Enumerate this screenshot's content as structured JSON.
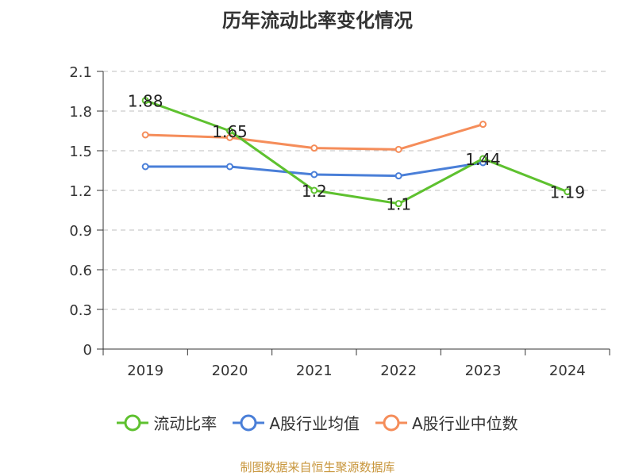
{
  "chart_data": {
    "type": "line",
    "title": "历年流动比率变化情况",
    "categories": [
      "2019",
      "2020",
      "2021",
      "2022",
      "2023",
      "2024"
    ],
    "ylim": [
      0,
      2.1
    ],
    "yticks": [
      "0",
      "0.3",
      "0.6",
      "0.9",
      "1.2",
      "1.5",
      "1.8",
      "2.1"
    ],
    "grid": true,
    "legend_position": "bottom",
    "series": [
      {
        "name": "流动比率",
        "color": "#5ec12f",
        "values": [
          1.88,
          1.65,
          1.2,
          1.1,
          1.44,
          1.19
        ],
        "labels": [
          "1.88",
          "1.65",
          "1.2",
          "1.1",
          "1.44",
          "1.19"
        ]
      },
      {
        "name": "A股行业均值",
        "color": "#4a7fd8",
        "values": [
          1.38,
          1.38,
          1.32,
          1.31,
          1.41,
          null
        ]
      },
      {
        "name": "A股行业中位数",
        "color": "#f58d5a",
        "values": [
          1.62,
          1.6,
          1.52,
          1.51,
          1.7,
          null
        ]
      }
    ]
  },
  "source": "制图数据来自恒生聚源数据库"
}
